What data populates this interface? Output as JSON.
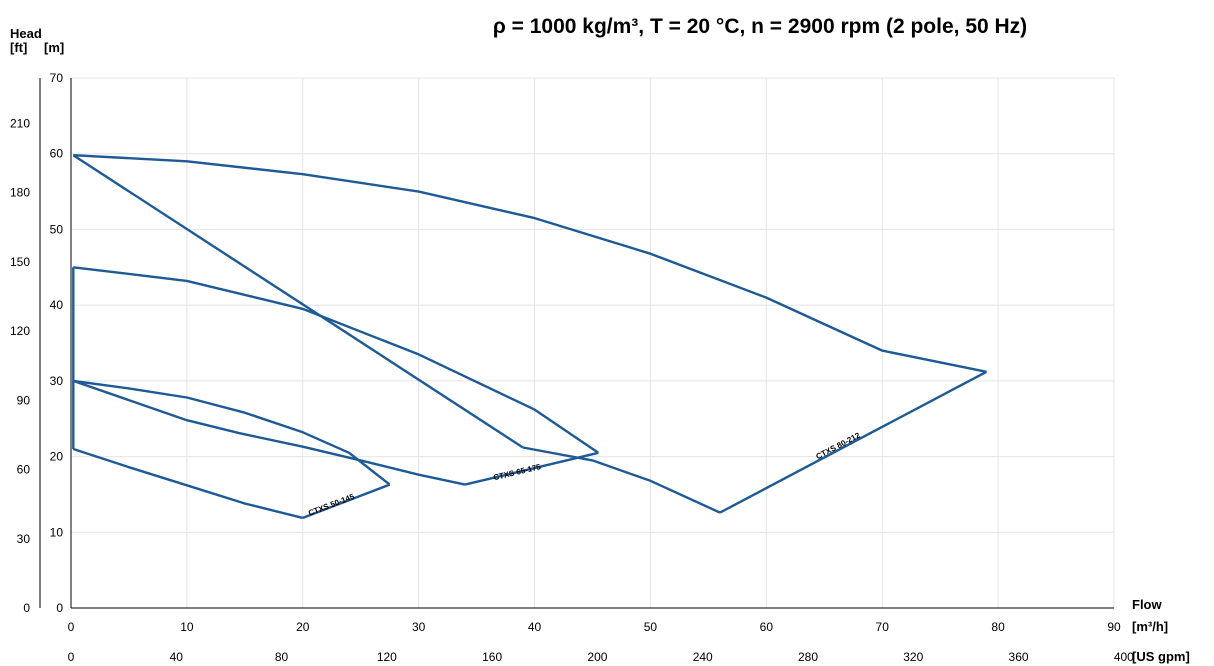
{
  "chart_data": {
    "type": "line",
    "title": "ρ = 1000 kg/m³, T = 20 °C, n = 2900 rpm (2 pole, 50 Hz)",
    "ylabel": "Head",
    "y_units": [
      "[ft]",
      "[m]"
    ],
    "xlabel": "Flow",
    "x_units": [
      "[m³/h]",
      "[US gpm]"
    ],
    "xlim": [
      0,
      90
    ],
    "ylim": [
      0,
      70
    ],
    "x_ticks_m3h": [
      "0",
      "10",
      "20",
      "30",
      "40",
      "50",
      "60",
      "70",
      "80",
      "90"
    ],
    "x_ticks_usgpm": [
      "0",
      "40",
      "80",
      "120",
      "160",
      "200",
      "240",
      "280",
      "320",
      "360",
      "400"
    ],
    "y_ticks_m": [
      "0",
      "10",
      "20",
      "30",
      "40",
      "50",
      "60",
      "70"
    ],
    "y_ticks_ft": [
      "0",
      "30",
      "60",
      "90",
      "120",
      "150",
      "180",
      "210"
    ],
    "grid": true,
    "line_color": "#1d5a96",
    "series": [
      {
        "name": "CTXS 50-145",
        "max_curve": [
          [
            0.2,
            30
          ],
          [
            5,
            29
          ],
          [
            10,
            27.8
          ],
          [
            15,
            25.8
          ],
          [
            20,
            23.2
          ],
          [
            24,
            20.5
          ],
          [
            27.5,
            16.3
          ]
        ],
        "min_curve": [
          [
            0.2,
            21
          ],
          [
            5,
            18.6
          ],
          [
            10,
            16.2
          ],
          [
            15,
            13.8
          ],
          [
            20,
            11.9
          ]
        ]
      },
      {
        "name": "CTXS 65-175",
        "max_curve": [
          [
            0.2,
            45
          ],
          [
            10,
            43.2
          ],
          [
            20,
            39.5
          ],
          [
            30,
            33.5
          ],
          [
            40,
            26.2
          ],
          [
            45.5,
            20.5
          ]
        ],
        "min_curve": [
          [
            0.2,
            30
          ],
          [
            10,
            24.8
          ],
          [
            14.5,
            23.1
          ],
          [
            20,
            21.3
          ],
          [
            25,
            19.5
          ],
          [
            30,
            17.6
          ],
          [
            34,
            16.3
          ]
        ]
      },
      {
        "name": "CTXS 80-212",
        "max_curve": [
          [
            0.2,
            59.8
          ],
          [
            10,
            59
          ],
          [
            20,
            57.3
          ],
          [
            30,
            55
          ],
          [
            40,
            51.5
          ],
          [
            50,
            46.8
          ],
          [
            60,
            41
          ],
          [
            70,
            34
          ],
          [
            79,
            31.2
          ]
        ],
        "min_curve": [
          [
            39,
            21.2
          ],
          [
            45,
            19.5
          ],
          [
            50,
            16.8
          ],
          [
            56,
            12.6
          ]
        ]
      }
    ]
  }
}
